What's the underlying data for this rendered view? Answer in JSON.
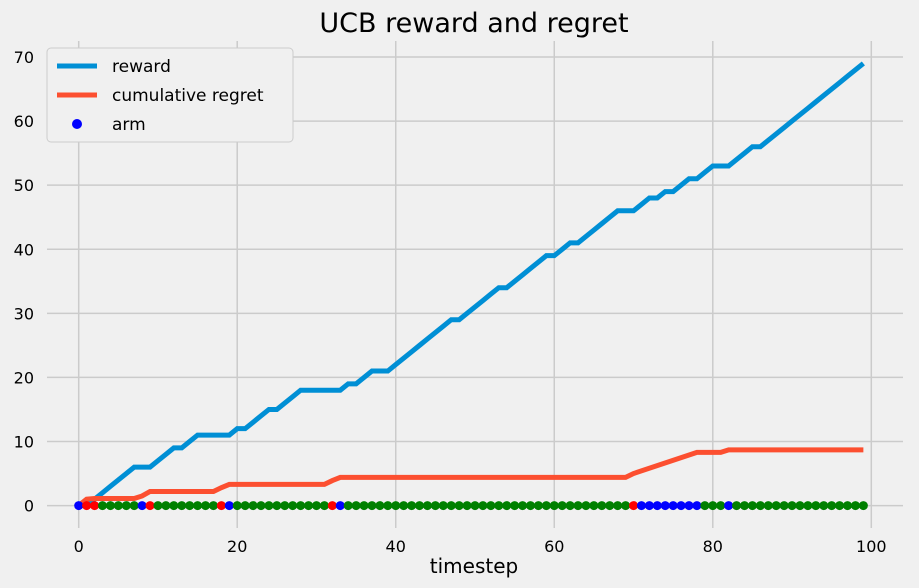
{
  "chart_data": {
    "type": "line",
    "title": "UCB reward and regret",
    "xlabel": "timestep",
    "ylabel": "",
    "xlim": [
      -4,
      104
    ],
    "ylim": [
      -3.5,
      72.5
    ],
    "xticks": [
      0,
      20,
      40,
      60,
      80,
      100
    ],
    "yticks": [
      0,
      10,
      20,
      30,
      40,
      50,
      60,
      70
    ],
    "grid": true,
    "legend_position": "upper-left",
    "colors": {
      "background": "#f0f0f0",
      "grid": "#cbcbcb",
      "reward": "#008fd5",
      "regret": "#fc4f30",
      "arm_0": "#0000ff",
      "arm_1": "#ff0000",
      "arm_2": "#008000"
    },
    "series": [
      {
        "name": "reward",
        "kind": "line",
        "color_key": "reward",
        "x": [
          0,
          1,
          2,
          3,
          4,
          5,
          6,
          7,
          8,
          9,
          10,
          11,
          12,
          13,
          14,
          15,
          16,
          17,
          18,
          19,
          20,
          21,
          22,
          23,
          24,
          25,
          26,
          27,
          28,
          29,
          30,
          31,
          32,
          33,
          34,
          35,
          36,
          37,
          38,
          39,
          40,
          41,
          42,
          43,
          44,
          45,
          46,
          47,
          48,
          49,
          50,
          51,
          52,
          53,
          54,
          55,
          56,
          57,
          58,
          59,
          60,
          61,
          62,
          63,
          64,
          65,
          66,
          67,
          68,
          69,
          70,
          71,
          72,
          73,
          74,
          75,
          76,
          77,
          78,
          79,
          80,
          81,
          82,
          83,
          84,
          85,
          86,
          87,
          88,
          89,
          90,
          91,
          92,
          93,
          94,
          95,
          96,
          97,
          98,
          99
        ],
        "y": [
          0,
          0,
          1,
          2,
          3,
          4,
          5,
          6,
          6,
          6,
          7,
          8,
          9,
          9,
          10,
          11,
          11,
          11,
          11,
          11,
          12,
          12,
          13,
          14,
          15,
          15,
          16,
          17,
          18,
          18,
          18,
          18,
          18,
          18,
          19,
          19,
          20,
          21,
          21,
          21,
          22,
          23,
          24,
          25,
          26,
          27,
          28,
          29,
          29,
          30,
          31,
          32,
          33,
          34,
          34,
          35,
          36,
          37,
          38,
          39,
          39,
          40,
          41,
          41,
          42,
          43,
          44,
          45,
          46,
          46,
          46,
          47,
          48,
          48,
          49,
          49,
          50,
          51,
          51,
          52,
          53,
          53,
          53,
          54,
          55,
          56,
          56,
          57,
          58,
          59,
          60,
          61,
          62,
          63,
          64,
          65,
          66,
          67,
          68,
          69
        ]
      },
      {
        "name": "cumulative regret",
        "kind": "line",
        "color_key": "regret",
        "x": [
          0,
          1,
          2,
          7,
          8,
          9,
          17,
          18,
          19,
          31,
          32,
          33,
          69,
          70,
          78,
          79,
          81,
          82,
          99
        ],
        "y": [
          0,
          1,
          1.1,
          1.1,
          1.5,
          2.2,
          2.2,
          2.8,
          3.3,
          3.3,
          3.9,
          4.4,
          4.4,
          5.0,
          8.3,
          8.3,
          8.3,
          8.7,
          8.7
        ]
      },
      {
        "name": "arm",
        "kind": "scatter",
        "x": [
          0,
          1,
          2,
          3,
          4,
          5,
          6,
          7,
          8,
          9,
          10,
          11,
          12,
          13,
          14,
          15,
          16,
          17,
          18,
          19,
          20,
          21,
          22,
          23,
          24,
          25,
          26,
          27,
          28,
          29,
          30,
          31,
          32,
          33,
          34,
          35,
          36,
          37,
          38,
          39,
          40,
          41,
          42,
          43,
          44,
          45,
          46,
          47,
          48,
          49,
          50,
          51,
          52,
          53,
          54,
          55,
          56,
          57,
          58,
          59,
          60,
          61,
          62,
          63,
          64,
          65,
          66,
          67,
          68,
          69,
          70,
          71,
          72,
          73,
          74,
          75,
          76,
          77,
          78,
          79,
          80,
          81,
          82,
          83,
          84,
          85,
          86,
          87,
          88,
          89,
          90,
          91,
          92,
          93,
          94,
          95,
          96,
          97,
          98,
          99
        ],
        "y": [
          0,
          0,
          0,
          0,
          0,
          0,
          0,
          0,
          0,
          0,
          0,
          0,
          0,
          0,
          0,
          0,
          0,
          0,
          0,
          0,
          0,
          0,
          0,
          0,
          0,
          0,
          0,
          0,
          0,
          0,
          0,
          0,
          0,
          0,
          0,
          0,
          0,
          0,
          0,
          0,
          0,
          0,
          0,
          0,
          0,
          0,
          0,
          0,
          0,
          0,
          0,
          0,
          0,
          0,
          0,
          0,
          0,
          0,
          0,
          0,
          0,
          0,
          0,
          0,
          0,
          0,
          0,
          0,
          0,
          0,
          0,
          0,
          0,
          0,
          0,
          0,
          0,
          0,
          0,
          0,
          0,
          0,
          0,
          0,
          0,
          0,
          0,
          0,
          0,
          0,
          0,
          0,
          0,
          0,
          0,
          0,
          0,
          0,
          0,
          0
        ],
        "arm_index": [
          0,
          1,
          1,
          2,
          2,
          2,
          2,
          2,
          0,
          1,
          2,
          2,
          2,
          2,
          2,
          2,
          2,
          2,
          1,
          0,
          2,
          2,
          2,
          2,
          2,
          2,
          2,
          2,
          2,
          2,
          2,
          2,
          1,
          0,
          2,
          2,
          2,
          2,
          2,
          2,
          2,
          2,
          2,
          2,
          2,
          2,
          2,
          2,
          2,
          2,
          2,
          2,
          2,
          2,
          2,
          2,
          2,
          2,
          2,
          2,
          2,
          2,
          2,
          2,
          2,
          2,
          2,
          2,
          2,
          2,
          1,
          0,
          0,
          0,
          0,
          0,
          0,
          0,
          0,
          2,
          2,
          2,
          0,
          2,
          2,
          2,
          2,
          2,
          2,
          2,
          2,
          2,
          2,
          2,
          2,
          2,
          2,
          2,
          2,
          2
        ]
      }
    ]
  }
}
